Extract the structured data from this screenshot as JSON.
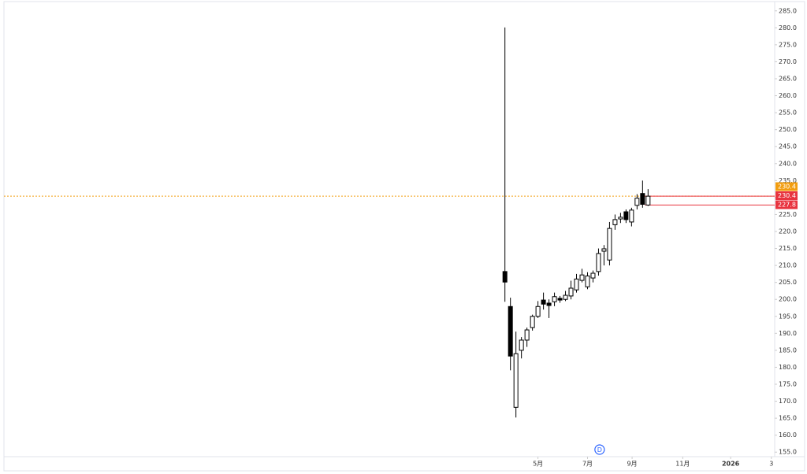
{
  "chart_data": {
    "type": "candlestick",
    "x": [
      0,
      1,
      2,
      3,
      4,
      5,
      6,
      7,
      8,
      9,
      10,
      11,
      12,
      13,
      14,
      15,
      16,
      17,
      18,
      19,
      20,
      21,
      22,
      23,
      24,
      25,
      26
    ],
    "open": [
      208.2,
      197.9,
      168.2,
      185.0,
      188.0,
      191.7,
      195.0,
      199.8,
      198.9,
      199.3,
      200.3,
      200.0,
      201.0,
      202.8,
      205.6,
      203.7,
      206.3,
      208.2,
      214.2,
      211.6,
      222.0,
      223.7,
      225.8,
      222.8,
      227.7,
      231.2,
      227.8
    ],
    "high": [
      280.1,
      200.5,
      190.5,
      188.9,
      191.7,
      195.5,
      199.5,
      202.0,
      200.0,
      202.0,
      201.0,
      202.5,
      205.5,
      207.5,
      209.0,
      208.0,
      208.5,
      215.0,
      216.0,
      222.8,
      225.0,
      225.5,
      226.5,
      227.0,
      231.0,
      235.0,
      232.5
    ],
    "low": [
      199.3,
      179.1,
      165.2,
      182.6,
      186.0,
      190.8,
      194.5,
      197.0,
      194.5,
      198.0,
      199.0,
      199.5,
      200.0,
      202.0,
      205.0,
      203.0,
      205.0,
      207.0,
      210.0,
      210.0,
      220.5,
      222.5,
      222.5,
      221.5,
      226.5,
      227.0,
      227.5
    ],
    "close": [
      205.1,
      183.3,
      184.0,
      188.0,
      191.0,
      195.0,
      197.9,
      198.6,
      198.2,
      200.8,
      199.8,
      201.2,
      203.3,
      206.0,
      207.2,
      206.9,
      207.7,
      213.5,
      214.9,
      220.9,
      223.5,
      224.2,
      223.5,
      226.3,
      229.8,
      228.0,
      230.4
    ],
    "up_color": "#ffffff",
    "down_color": "#000000",
    "wick_color": "#000000",
    "xlim": [
      -91,
      49
    ],
    "xticks": [
      {
        "value": 6,
        "label": "5月"
      },
      {
        "value": 15,
        "label": "7月"
      },
      {
        "value": 23.1,
        "label": "9月"
      },
      {
        "value": 32.3,
        "label": "11月"
      },
      {
        "value": 41,
        "label": "2026"
      },
      {
        "value": 48.4,
        "label": "3"
      }
    ],
    "ylim": [
      152.5,
      287.5
    ],
    "yticks": [
      {
        "value": 155,
        "label": "155.0"
      },
      {
        "value": 160,
        "label": "160.0"
      },
      {
        "value": 165,
        "label": "165.0"
      },
      {
        "value": 170,
        "label": "170.0"
      },
      {
        "value": 175,
        "label": "175.0"
      },
      {
        "value": 180,
        "label": "180.0"
      },
      {
        "value": 185,
        "label": "185.0"
      },
      {
        "value": 190,
        "label": "190.0"
      },
      {
        "value": 195,
        "label": "195.0"
      },
      {
        "value": 200,
        "label": "200.0"
      },
      {
        "value": 205,
        "label": "205.0"
      },
      {
        "value": 210,
        "label": "210.0"
      },
      {
        "value": 215,
        "label": "215.0"
      },
      {
        "value": 220,
        "label": "220.0"
      },
      {
        "value": 225,
        "label": "225.0"
      },
      {
        "value": 230,
        "label": "230.0"
      },
      {
        "value": 235,
        "label": "235.0"
      },
      {
        "value": 240,
        "label": "240.0"
      },
      {
        "value": 245,
        "label": "245.0"
      },
      {
        "value": 250,
        "label": "250.0"
      },
      {
        "value": 255,
        "label": "255.0"
      },
      {
        "value": 260,
        "label": "260.0"
      },
      {
        "value": 265,
        "label": "265.0"
      },
      {
        "value": 270,
        "label": "270.0"
      },
      {
        "value": 275,
        "label": "275.0"
      },
      {
        "value": 280,
        "label": "280.0"
      },
      {
        "value": 285,
        "label": "285.0"
      }
    ],
    "price_labels": [
      {
        "value": 230.4,
        "label": "230.4",
        "color": "#f29d0f",
        "line": "dotted"
      },
      {
        "value": 230.4,
        "label": "230.4",
        "color": "#e8343f",
        "line": "solid"
      },
      {
        "value": 227.8,
        "label": "227.8",
        "color": "#e8343f",
        "line": "solid"
      }
    ],
    "event_marker": {
      "x": 17.2,
      "label": "D",
      "color": "#2962ff"
    }
  }
}
